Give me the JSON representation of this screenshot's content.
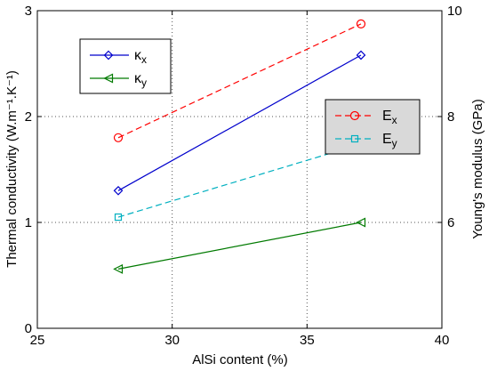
{
  "chart_data": {
    "type": "line",
    "xlabel": "AlSi content (%)",
    "ylabel_left": "Thermal conductivity (W.m⁻¹.K⁻¹)",
    "ylabel_right": "Young's modulus (GPa)",
    "xlim": [
      25,
      40
    ],
    "ylim_left": [
      0,
      3
    ],
    "ylim_right": [
      4,
      10
    ],
    "x_ticks": [
      "25",
      "30",
      "35",
      "40"
    ],
    "y_ticks_left": [
      "0",
      "1",
      "2",
      "3"
    ],
    "y_ticks_right": [
      "6",
      "8",
      "10"
    ],
    "grid": "dotted",
    "series": [
      {
        "name": "κx",
        "axis": "left",
        "color": "#0000cc",
        "line": "solid",
        "marker": "diamond",
        "x": [
          28,
          37
        ],
        "y": [
          1.3,
          2.58
        ]
      },
      {
        "name": "κy",
        "axis": "left",
        "color": "#007a00",
        "line": "solid",
        "marker": "triangle-left",
        "x": [
          28,
          37
        ],
        "y": [
          0.56,
          1.0
        ]
      },
      {
        "name": "Ex",
        "axis": "right",
        "color": "#ff0000",
        "line": "dashed",
        "marker": "circle",
        "x": [
          28,
          37
        ],
        "y": [
          7.6,
          9.75
        ]
      },
      {
        "name": "Ey",
        "axis": "right",
        "color": "#00b0c0",
        "line": "dashed",
        "marker": "square",
        "x": [
          28,
          37
        ],
        "y": [
          6.1,
          7.48
        ]
      }
    ],
    "legends": [
      {
        "placement": "upper-left",
        "background": "#ffffff",
        "entries": [
          "κx",
          "κy"
        ]
      },
      {
        "placement": "right",
        "background": "#d9d9d9",
        "entries": [
          "Ex",
          "Ey"
        ]
      }
    ]
  }
}
